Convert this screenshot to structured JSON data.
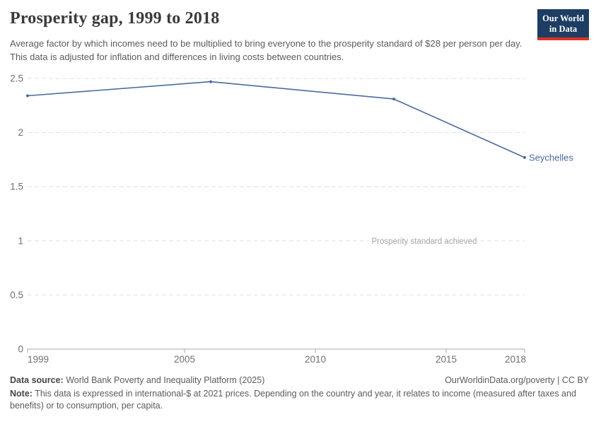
{
  "header": {
    "title": "Prosperity gap, 1999 to 2018",
    "subtitle": "Average factor by which incomes need to be multiplied to bring everyone to the prosperity standard of $28 per person per day. This data is adjusted for inflation and differences in living costs between countries.",
    "logo_line1": "Our World",
    "logo_line2": "in Data"
  },
  "chart_data": {
    "type": "line",
    "title": "Prosperity gap, 1999 to 2018",
    "xlabel": "",
    "ylabel": "",
    "xlim": [
      1999,
      2018
    ],
    "ylim": [
      0,
      2.5
    ],
    "grid": true,
    "legend_position": "end-of-line",
    "xticks": [
      1999,
      2005,
      2010,
      2015,
      2018
    ],
    "xtick_labels": [
      "1999",
      "2005",
      "2010",
      "2015",
      "2018"
    ],
    "yticks": [
      0,
      0.5,
      1,
      1.5,
      2,
      2.5
    ],
    "ytick_labels": [
      "0",
      "0.5",
      "1",
      "1.5",
      "2",
      "2.5"
    ],
    "series": [
      {
        "name": "Seychelles",
        "color": "#4c6a9c",
        "x": [
          1999,
          2006,
          2013,
          2018
        ],
        "values": [
          2.34,
          2.47,
          2.31,
          1.77
        ]
      }
    ],
    "annotation": {
      "text": "Prosperity standard achieved",
      "y": 1
    }
  },
  "footer": {
    "source_label": "Data source:",
    "source_text": " World Bank Poverty and Inequality Platform (2025)",
    "attribution": "OurWorldinData.org/poverty | CC BY",
    "note_label": "Note:",
    "note_text": " This data is expressed in international-$ at 2021 prices. Depending on the country and year, it relates to income (measured after taxes and benefits) or to consumption, per capita."
  },
  "colors": {
    "line": "#4c6a9c",
    "grid": "#e0e0e0",
    "axis": "#a8a8a8",
    "tick_label": "#6e6e6e",
    "annotation": "#a3a3a3",
    "logo_navy": "#1d3d63",
    "logo_red": "#dc3224"
  }
}
